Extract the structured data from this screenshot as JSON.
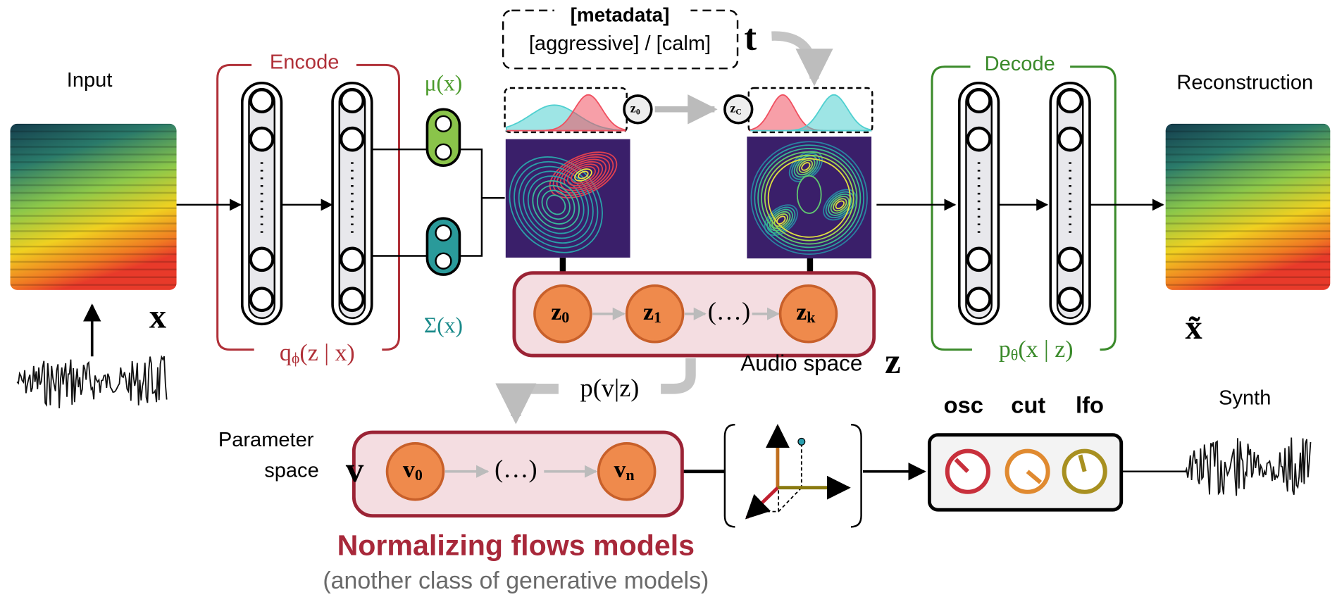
{
  "labels": {
    "input": "Input",
    "reconstruction": "Reconstruction",
    "synth": "Synth",
    "x": "x",
    "x_tilde": "x̃",
    "encode": "Encode",
    "decode": "Decode",
    "mu": "μ(x)",
    "sigma": "Σ(x)",
    "metadata": "[metadata]",
    "metadata_values": "[aggressive] / [calm]",
    "t": "t",
    "audio_space": "Audio space",
    "z": "z",
    "parameter": "Parameter",
    "space": "space",
    "v": "v",
    "p_v_z": "p(v|z)",
    "ellipsis_z": "(…)",
    "ellipsis_v": "(…)",
    "osc": "osc",
    "cut": "cut",
    "lfo": "lfo",
    "title": "Normalizing flows models",
    "subtitle": "(another class of generative models)"
  },
  "encoder_posterior": {
    "base": "q",
    "sub": "ϕ",
    "rest": "(z | x)"
  },
  "decoder_likelihood": {
    "base": "p",
    "sub": "θ",
    "rest": "(x | z)"
  },
  "small_nodes": [
    {
      "base": "z",
      "sub": "0"
    },
    {
      "base": "z",
      "sub": "C"
    }
  ],
  "flow_nodes": [
    {
      "base": "z",
      "sub": "0"
    },
    {
      "base": "z",
      "sub": "1"
    },
    {
      "base": "z",
      "sub": "k"
    }
  ],
  "param_nodes": [
    {
      "base": "v",
      "sub": "0"
    },
    {
      "base": "v",
      "sub": "n"
    }
  ]
}
